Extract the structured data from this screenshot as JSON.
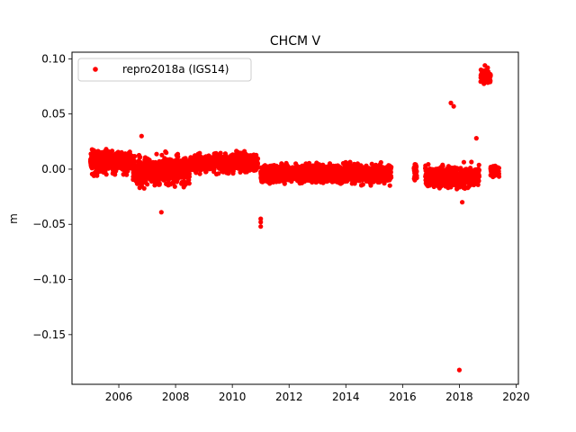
{
  "chart_data": {
    "type": "scatter",
    "title": "CHCM V",
    "xlabel": "",
    "ylabel": "m",
    "xlim": [
      2004.35,
      2020.08
    ],
    "ylim": [
      -0.195,
      0.106
    ],
    "xticks": [
      2006,
      2008,
      2010,
      2012,
      2014,
      2016,
      2018,
      2020
    ],
    "xtick_labels": [
      "2006",
      "2008",
      "2010",
      "2012",
      "2014",
      "2016",
      "2018",
      "2020"
    ],
    "yticks": [
      0.1,
      0.05,
      0.0,
      -0.05,
      -0.1,
      -0.15
    ],
    "ytick_labels": [
      "0.10",
      "0.05",
      "0.00",
      "−0.05",
      "−0.10",
      "−0.15"
    ],
    "grid": false,
    "legend_position": "upper left",
    "series": [
      {
        "name": "repro2018a (IGS14)",
        "color": "#ff0000",
        "marker": "circle",
        "segments": [
          {
            "x_start": 2005.0,
            "x_end": 2006.5,
            "center": 0.006,
            "spread": 0.007
          },
          {
            "x_start": 2006.5,
            "x_end": 2008.5,
            "center": -0.002,
            "spread": 0.009
          },
          {
            "x_start": 2008.5,
            "x_end": 2010.9,
            "center": 0.006,
            "spread": 0.006
          },
          {
            "x_start": 2011.0,
            "x_end": 2015.6,
            "center": -0.004,
            "spread": 0.006
          },
          {
            "x_start": 2016.4,
            "x_end": 2016.5,
            "center": -0.002,
            "spread": 0.005
          },
          {
            "x_start": 2016.8,
            "x_end": 2018.7,
            "center": -0.007,
            "spread": 0.007
          },
          {
            "x_start": 2018.75,
            "x_end": 2019.1,
            "center": 0.084,
            "spread": 0.004
          },
          {
            "x_start": 2019.1,
            "x_end": 2019.4,
            "center": -0.002,
            "spread": 0.004
          }
        ],
        "outliers": [
          {
            "x": 2006.8,
            "y": 0.03
          },
          {
            "x": 2007.5,
            "y": -0.039
          },
          {
            "x": 2011.0,
            "y": -0.045
          },
          {
            "x": 2011.0,
            "y": -0.048
          },
          {
            "x": 2011.0,
            "y": -0.052
          },
          {
            "x": 2017.7,
            "y": 0.06
          },
          {
            "x": 2017.8,
            "y": 0.057
          },
          {
            "x": 2018.0,
            "y": -0.182
          },
          {
            "x": 2018.1,
            "y": -0.03
          },
          {
            "x": 2018.6,
            "y": 0.028
          },
          {
            "x": 2018.9,
            "y": 0.094
          },
          {
            "x": 2019.0,
            "y": 0.092
          }
        ]
      }
    ]
  }
}
